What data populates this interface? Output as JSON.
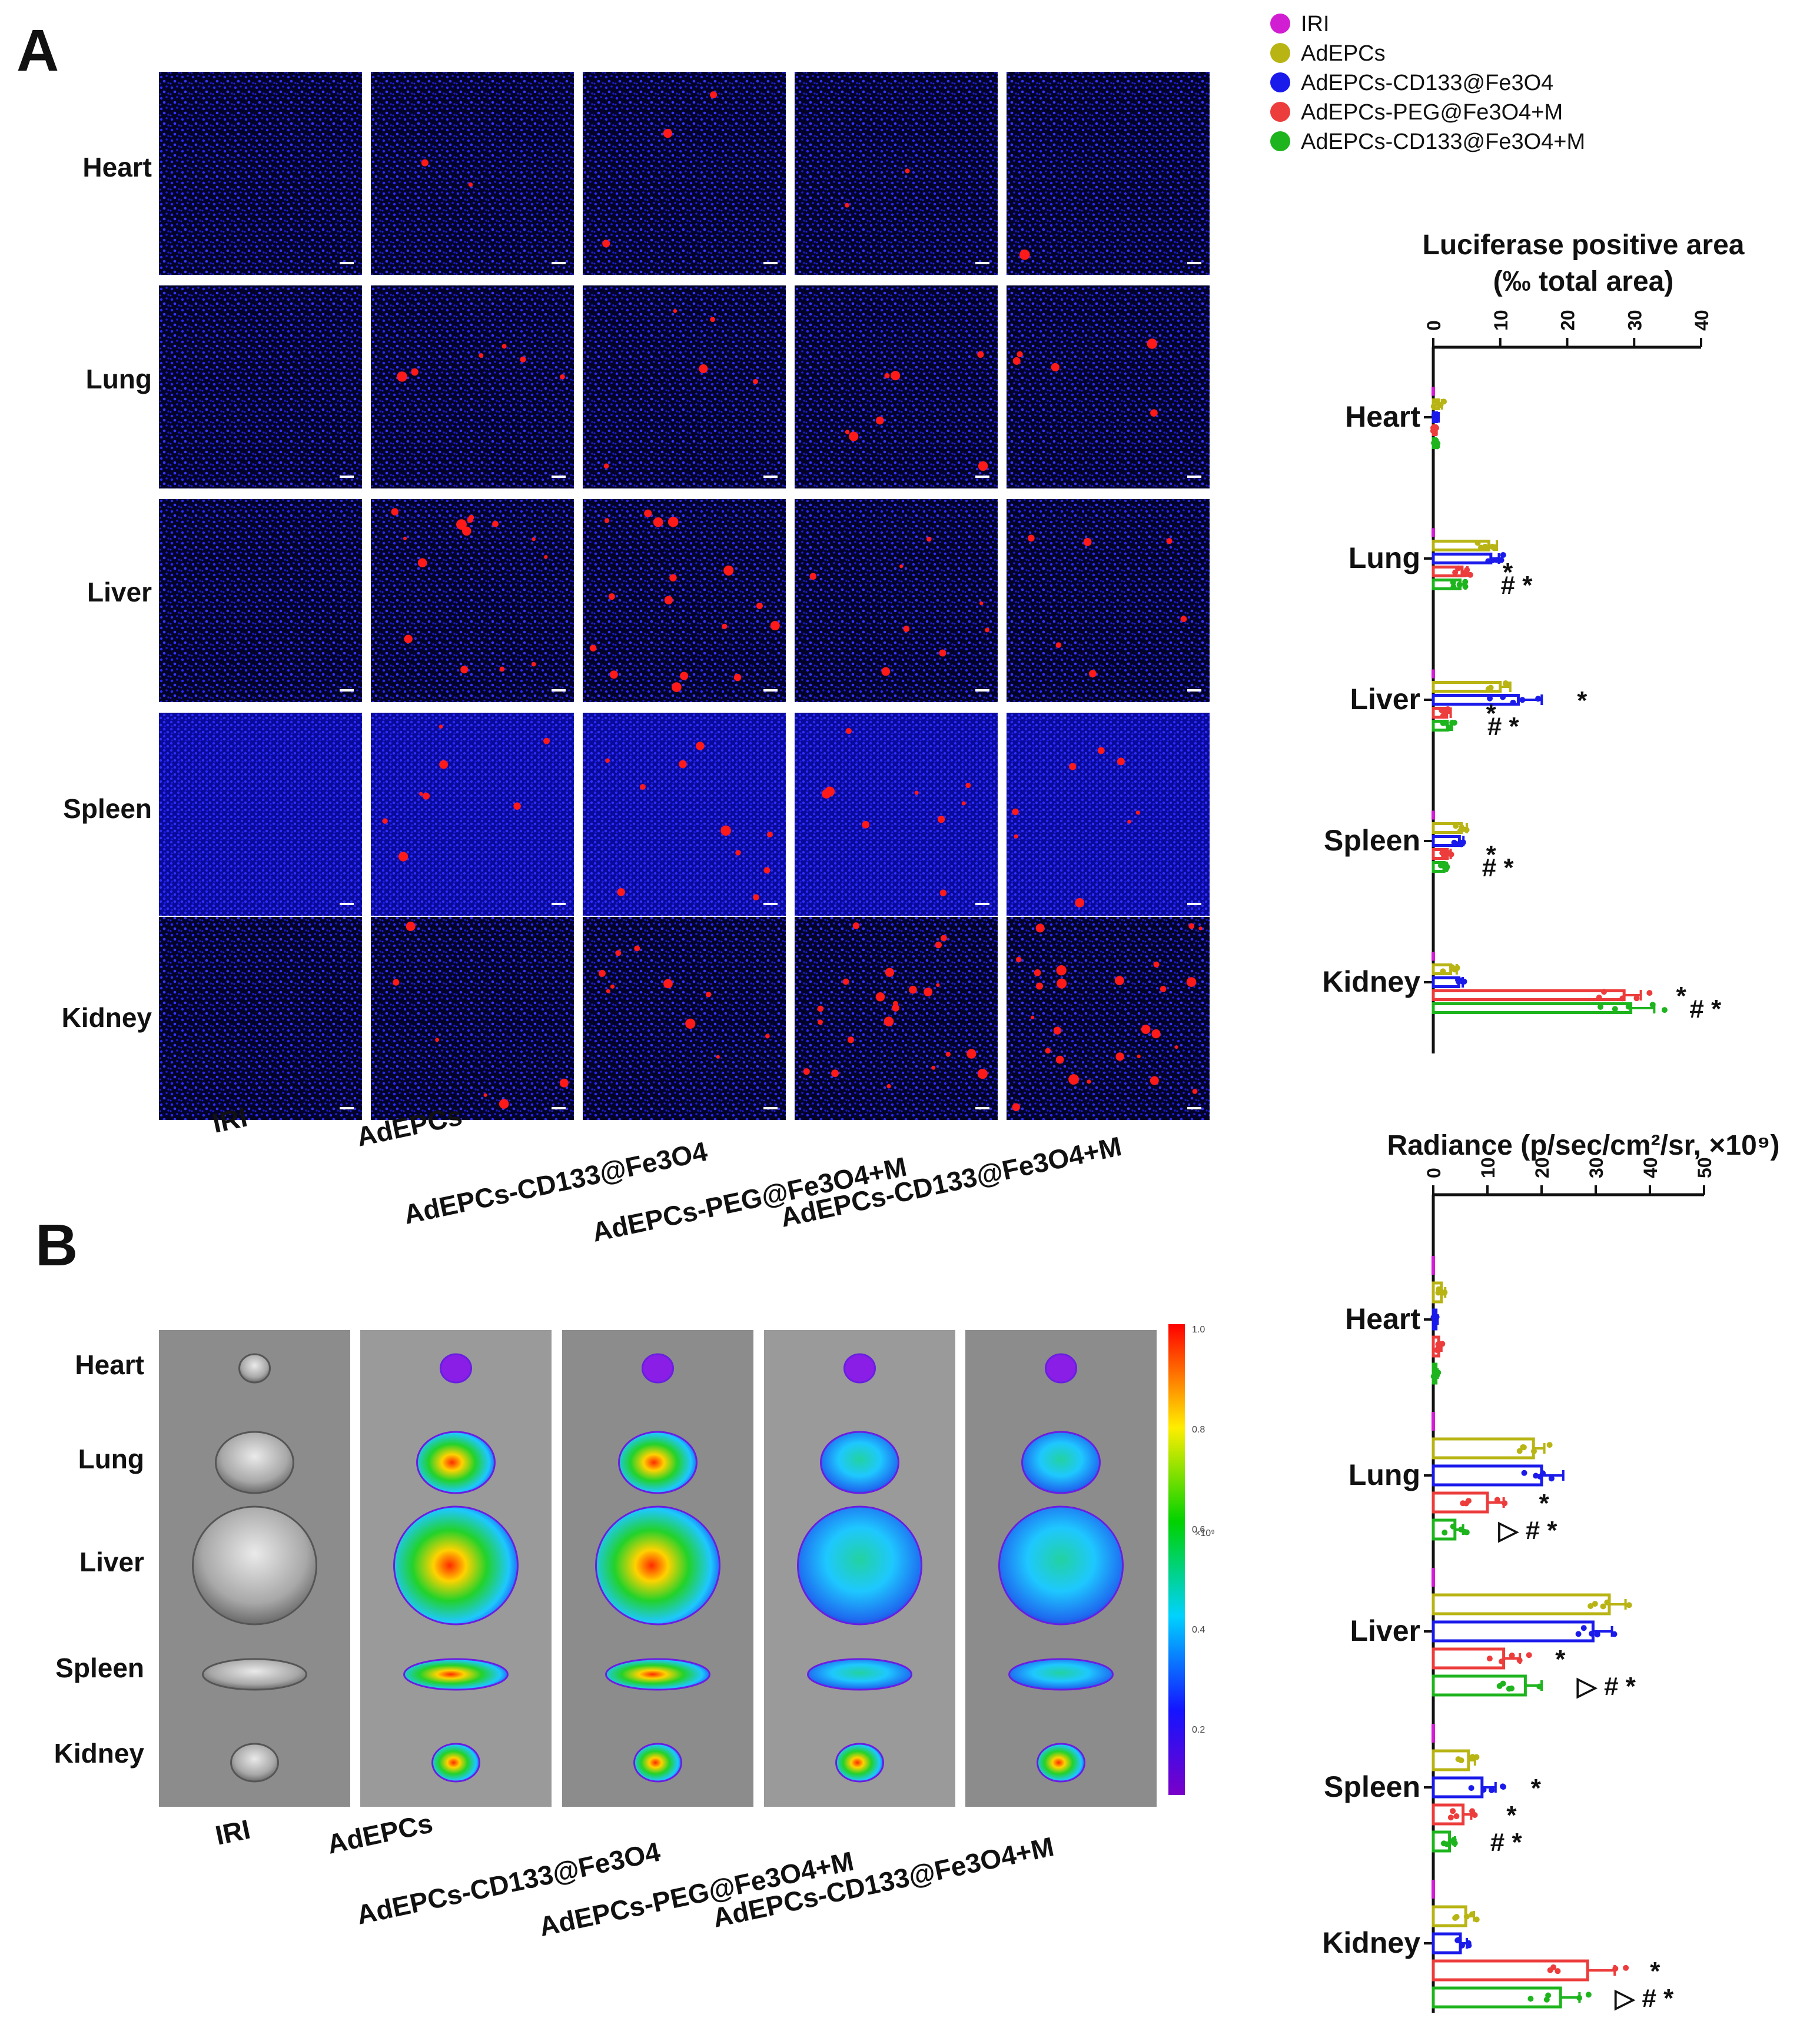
{
  "figure": {
    "panel_a_letter": "A",
    "panel_b_letter": "B",
    "legend": [
      {
        "label": "IRI",
        "color": "#d21ed2"
      },
      {
        "label": "AdEPCs",
        "color": "#b8b414"
      },
      {
        "label": "AdEPCs-CD133@Fe3O4",
        "color": "#1a1aeb"
      },
      {
        "label": "AdEPCs-PEG@Fe3O4+M",
        "color": "#ec3c3c"
      },
      {
        "label": "AdEPCs-CD133@Fe3O4+M",
        "color": "#1eb41e"
      }
    ]
  },
  "panel_a": {
    "row_labels": [
      "Heart",
      "Lung",
      "Liver",
      "Spleen",
      "Kidney"
    ],
    "column_labels": [
      "IRI",
      "AdEPCs",
      "AdEPCs-CD133@Fe3O4",
      "AdEPCs-PEG@Fe3O4+M",
      "AdEPCs-CD133@Fe3O4+M"
    ]
  },
  "panel_b": {
    "row_labels": [
      "Heart",
      "Lung",
      "Liver",
      "Spleen",
      "Kidney"
    ],
    "column_labels": [
      "IRI",
      "AdEPCs",
      "AdEPCs-CD133@Fe3O4",
      "AdEPCs-PEG@Fe3O4+M",
      "AdEPCs-CD133@Fe3O4+M"
    ],
    "colorbar": {
      "ticks": [
        "1.0",
        "0.8",
        "0.6",
        "0.4",
        "0.2"
      ],
      "unit": "×10⁹"
    }
  },
  "chart_data": [
    {
      "type": "bar",
      "orientation": "horizontal",
      "title_line1": "Luciferase positive area",
      "title_line2": "(‰ total area)",
      "xlim": [
        0,
        40
      ],
      "xticks": [
        "0",
        "10",
        "20",
        "30",
        "40"
      ],
      "categories": [
        "Heart",
        "Lung",
        "Liver",
        "Spleen",
        "Kidney"
      ],
      "series": [
        {
          "name": "IRI",
          "color": "#d21ed2",
          "values": [
            0,
            0,
            0,
            0,
            0
          ],
          "errors": [
            0,
            0,
            0,
            0,
            0
          ]
        },
        {
          "name": "AdEPCs",
          "color": "#b8b414",
          "values": [
            0.8,
            8.3,
            10.0,
            4.2,
            2.6
          ],
          "errors": [
            0.5,
            1.2,
            1.5,
            0.8,
            0.9
          ]
        },
        {
          "name": "AdEPCs-CD133@Fe3O4",
          "color": "#1a1aeb",
          "values": [
            0.5,
            8.6,
            12.7,
            3.9,
            3.8
          ],
          "errors": [
            0.3,
            1.2,
            3.5,
            0.6,
            0.6
          ]
        },
        {
          "name": "AdEPCs-PEG@Fe3O4+M",
          "color": "#ec3c3c",
          "values": [
            0.3,
            4.3,
            2.0,
            2.1,
            28.5
          ],
          "errors": [
            0.2,
            0.8,
            0.6,
            0.5,
            2.5
          ]
        },
        {
          "name": "AdEPCs-CD133@Fe3O4+M",
          "color": "#1eb41e",
          "values": [
            0.3,
            4.0,
            2.1,
            1.6,
            29.5
          ],
          "errors": [
            0.2,
            0.8,
            0.7,
            0.4,
            3.5
          ]
        }
      ],
      "significance": [
        {
          "category": "Lung",
          "series": "AdEPCs-PEG@Fe3O4+M",
          "text": "*"
        },
        {
          "category": "Lung",
          "series": "AdEPCs-CD133@Fe3O4+M",
          "text": "# *"
        },
        {
          "category": "Liver",
          "series": "AdEPCs-CD133@Fe3O4",
          "text": "*"
        },
        {
          "category": "Liver",
          "series": "AdEPCs-PEG@Fe3O4+M",
          "text": "*"
        },
        {
          "category": "Liver",
          "series": "AdEPCs-CD133@Fe3O4+M",
          "text": "# *"
        },
        {
          "category": "Spleen",
          "series": "AdEPCs-PEG@Fe3O4+M",
          "text": "*"
        },
        {
          "category": "Spleen",
          "series": "AdEPCs-CD133@Fe3O4+M",
          "text": "# *"
        },
        {
          "category": "Kidney",
          "series": "AdEPCs-PEG@Fe3O4+M",
          "text": "*"
        },
        {
          "category": "Kidney",
          "series": "AdEPCs-CD133@Fe3O4+M",
          "text": "# *"
        }
      ]
    },
    {
      "type": "bar",
      "orientation": "horizontal",
      "title": "Radiance (p/sec/cm²/sr, ×10⁹)",
      "xlim": [
        0,
        50
      ],
      "xticks": [
        "0",
        "10",
        "20",
        "30",
        "40",
        "50"
      ],
      "categories": [
        "Heart",
        "Lung",
        "Liver",
        "Spleen",
        "Kidney"
      ],
      "series": [
        {
          "name": "IRI",
          "color": "#d21ed2",
          "values": [
            0,
            0,
            0,
            0,
            0
          ],
          "errors": [
            0,
            0,
            0,
            0,
            0
          ]
        },
        {
          "name": "AdEPCs",
          "color": "#b8b414",
          "values": [
            1.5,
            18.5,
            32.5,
            6.5,
            6.0
          ],
          "errors": [
            0.7,
            2.0,
            3.0,
            1.2,
            1.5
          ]
        },
        {
          "name": "AdEPCs-CD133@Fe3O4",
          "color": "#1a1aeb",
          "values": [
            0.5,
            20.0,
            29.5,
            9.0,
            5.0
          ],
          "errors": [
            0.3,
            4.0,
            3.5,
            2.5,
            1.2
          ]
        },
        {
          "name": "AdEPCs-PEG@Fe3O4+M",
          "color": "#ec3c3c",
          "values": [
            1.0,
            10.0,
            13.0,
            5.5,
            28.5
          ],
          "errors": [
            0.5,
            3.0,
            3.0,
            1.5,
            5.0
          ]
        },
        {
          "name": "AdEPCs-CD133@Fe3O4+M",
          "color": "#1eb41e",
          "values": [
            0.5,
            4.0,
            17.0,
            3.0,
            23.5
          ],
          "errors": [
            0.3,
            1.5,
            3.0,
            1.0,
            3.5
          ]
        }
      ],
      "significance": [
        {
          "category": "Lung",
          "series": "AdEPCs-PEG@Fe3O4+M",
          "text": "*"
        },
        {
          "category": "Lung",
          "series": "AdEPCs-CD133@Fe3O4+M",
          "text": "▷ # *"
        },
        {
          "category": "Liver",
          "series": "AdEPCs-PEG@Fe3O4+M",
          "text": "*"
        },
        {
          "category": "Liver",
          "series": "AdEPCs-CD133@Fe3O4+M",
          "text": "▷ # *"
        },
        {
          "category": "Spleen",
          "series": "AdEPCs-CD133@Fe3O4",
          "text": "*"
        },
        {
          "category": "Spleen",
          "series": "AdEPCs-PEG@Fe3O4+M",
          "text": "*"
        },
        {
          "category": "Spleen",
          "series": "AdEPCs-CD133@Fe3O4+M",
          "text": "# *"
        },
        {
          "category": "Kidney",
          "series": "AdEPCs-PEG@Fe3O4+M",
          "text": "*"
        },
        {
          "category": "Kidney",
          "series": "AdEPCs-CD133@Fe3O4+M",
          "text": "▷ # *"
        }
      ]
    }
  ]
}
